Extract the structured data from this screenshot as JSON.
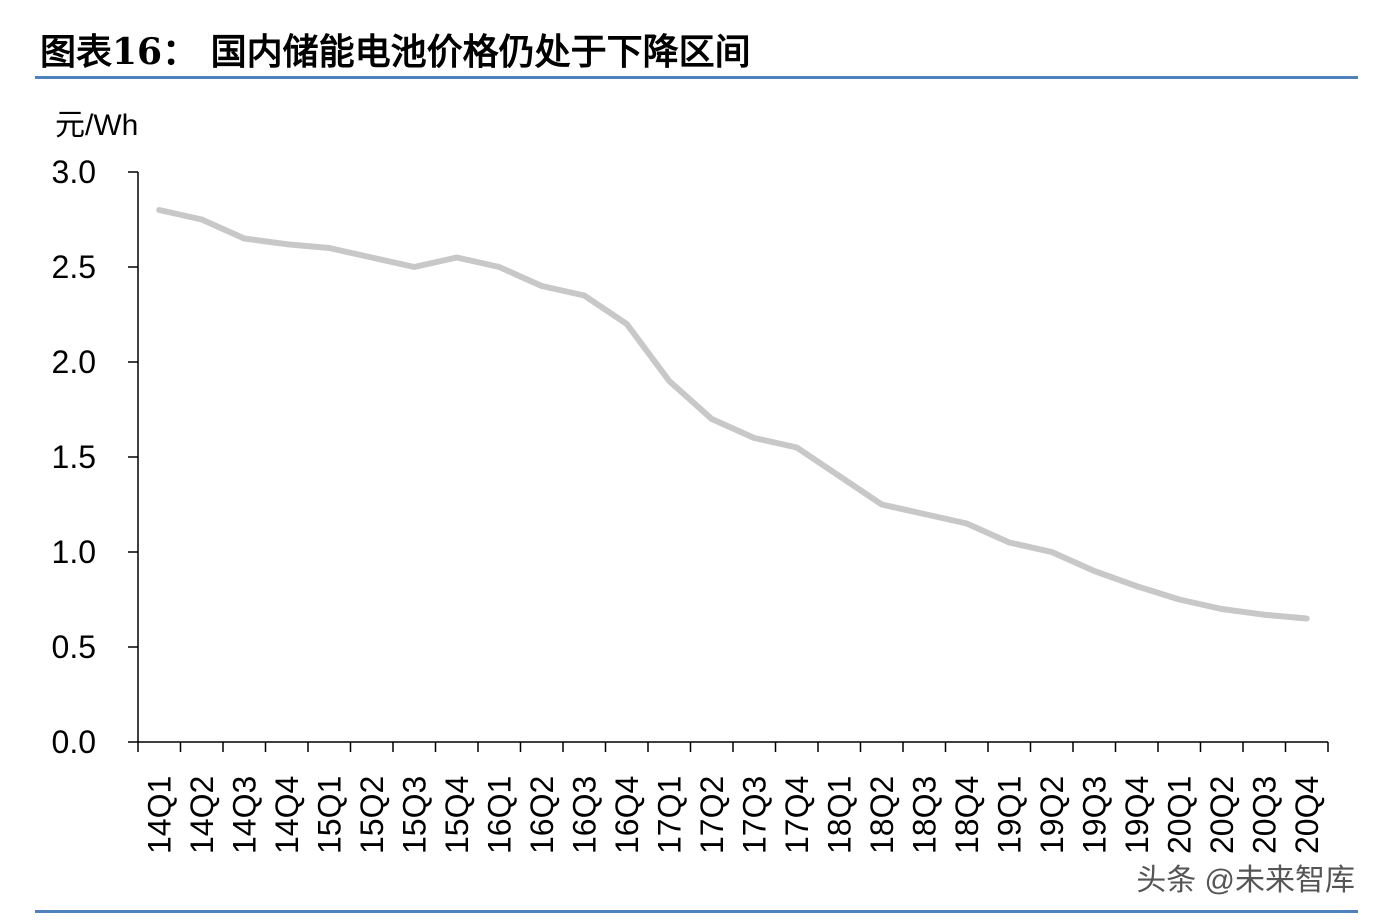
{
  "chart_data": {
    "type": "line",
    "title": "图表16：  国内储能电池价格仍处于下降区间",
    "y_label": "元/Wh",
    "watermark": "头条 @未来智库",
    "categories": [
      "14Q1",
      "14Q2",
      "14Q3",
      "14Q4",
      "15Q1",
      "15Q2",
      "15Q3",
      "15Q4",
      "16Q1",
      "16Q2",
      "16Q3",
      "16Q4",
      "17Q1",
      "17Q2",
      "17Q3",
      "17Q4",
      "18Q1",
      "18Q2",
      "18Q3",
      "18Q4",
      "19Q1",
      "19Q2",
      "19Q3",
      "19Q4",
      "20Q1",
      "20Q2",
      "20Q3",
      "20Q4"
    ],
    "values": [
      2.8,
      2.75,
      2.65,
      2.62,
      2.6,
      2.55,
      2.5,
      2.55,
      2.5,
      2.4,
      2.35,
      2.2,
      1.9,
      1.7,
      1.6,
      1.55,
      1.4,
      1.25,
      1.2,
      1.15,
      1.05,
      1.0,
      0.9,
      0.82,
      0.75,
      0.7,
      0.67,
      0.65
    ],
    "color": "#c8c8c8",
    "ylim": [
      0,
      3
    ],
    "yticks": [
      {
        "value": 0,
        "label": "0.0"
      },
      {
        "value": 0.5,
        "label": "0.5"
      },
      {
        "value": 1,
        "label": "1.0"
      },
      {
        "value": 1.5,
        "label": "1.5"
      },
      {
        "value": 2,
        "label": "2.0"
      },
      {
        "value": 2.5,
        "label": "2.5"
      },
      {
        "value": 3,
        "label": "3.0"
      }
    ],
    "grid": false
  }
}
